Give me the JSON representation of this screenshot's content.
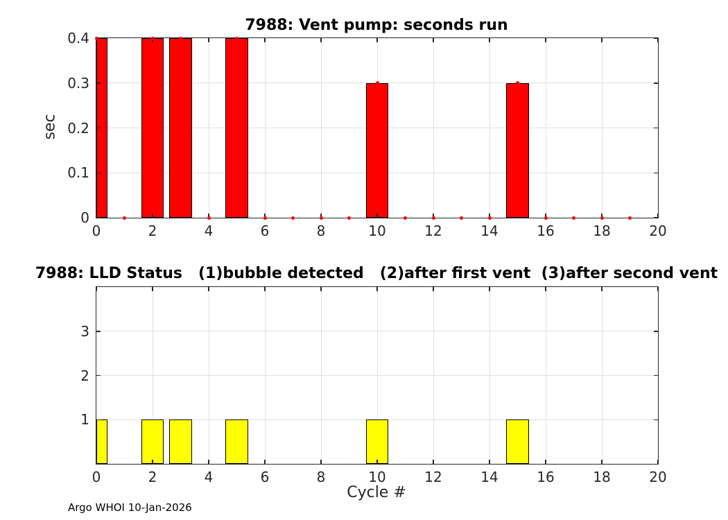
{
  "figure": {
    "background": "#FFFFFF",
    "footer": "Argo WHOI 10-Jan-2026"
  },
  "chart_data": [
    {
      "type": "bar",
      "title": "7988: Vent pump: seconds run",
      "ylabel": "sec",
      "xlabel": "",
      "x": [
        0,
        1,
        2,
        3,
        4,
        5,
        6,
        7,
        8,
        9,
        10,
        11,
        12,
        13,
        14,
        15,
        16,
        17,
        18,
        19
      ],
      "values": [
        0.4,
        0,
        0.4,
        0.4,
        0,
        0.4,
        0,
        0,
        0,
        0,
        0.3,
        0,
        0,
        0,
        0,
        0.3,
        0,
        0,
        0,
        0
      ],
      "bar_width": 0.8,
      "bar_color": "#FF0000",
      "bar_edge_color": "#000000",
      "marker": "point",
      "marker_color": "#FF0000",
      "xlim": [
        0,
        20
      ],
      "ylim": [
        0,
        0.4
      ],
      "xticks": [
        0,
        2,
        4,
        6,
        8,
        10,
        12,
        14,
        16,
        18,
        20
      ],
      "xtick_labels": [
        "0",
        "2",
        "4",
        "6",
        "8",
        "10",
        "12",
        "14",
        "16",
        "18",
        "20"
      ],
      "yticks": [
        0,
        0.1,
        0.2,
        0.3,
        0.4
      ],
      "ytick_labels": [
        "0",
        "0.1",
        "0.2",
        "0.3",
        "0.4"
      ],
      "grid": true,
      "grid_color": "#E0E0E0",
      "legend": "none"
    },
    {
      "type": "bar",
      "title": "7988: LLD Status   (1)bubble detected   (2)after first vent  (3)after second vent",
      "ylabel": "",
      "xlabel": "Cycle #",
      "x": [
        0,
        1,
        2,
        3,
        4,
        5,
        6,
        7,
        8,
        9,
        10,
        11,
        12,
        13,
        14,
        15,
        16,
        17,
        18,
        19
      ],
      "values": [
        1,
        0,
        1,
        1,
        0,
        1,
        0,
        0,
        0,
        0,
        1,
        0,
        0,
        0,
        0,
        1,
        0,
        0,
        0,
        0
      ],
      "bar_width": 0.8,
      "bar_color": "#FFFF00",
      "bar_edge_color": "#000000",
      "marker": "none",
      "xlim": [
        0,
        20
      ],
      "ylim": [
        0,
        4
      ],
      "xticks": [
        0,
        2,
        4,
        6,
        8,
        10,
        12,
        14,
        16,
        18,
        20
      ],
      "xtick_labels": [
        "0",
        "2",
        "4",
        "6",
        "8",
        "10",
        "12",
        "14",
        "16",
        "18",
        "20"
      ],
      "yticks": [
        1,
        2,
        3
      ],
      "ytick_labels": [
        "1",
        "2",
        "3"
      ],
      "grid": true,
      "grid_color": "#E0E0E0",
      "legend": "none"
    }
  ]
}
